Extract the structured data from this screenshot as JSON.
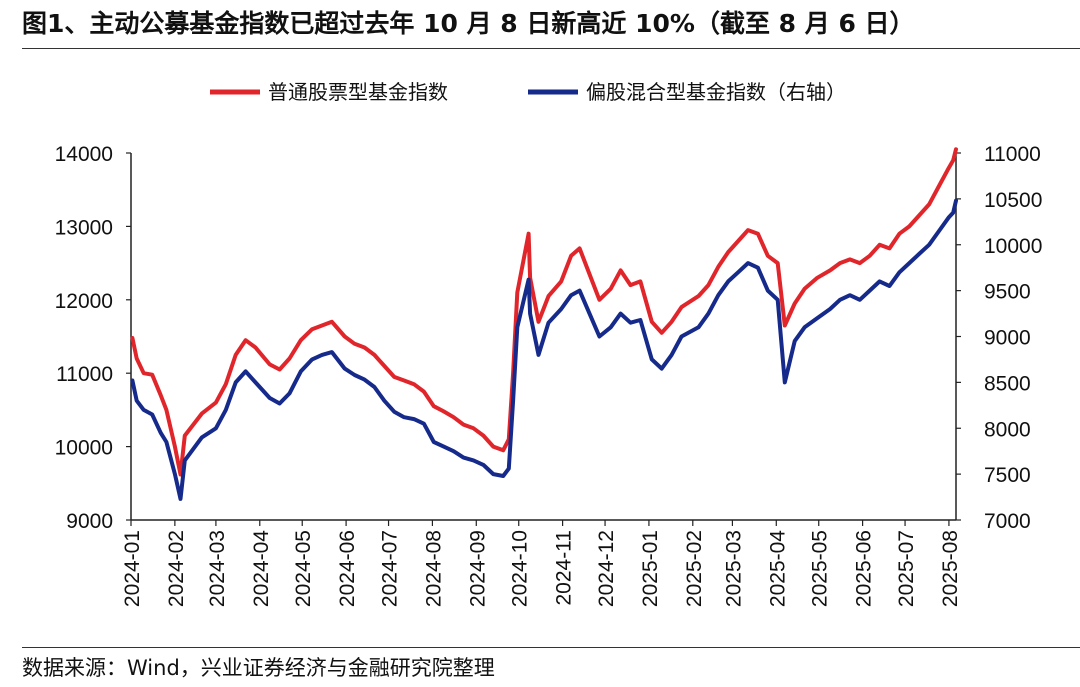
{
  "header": {
    "title": "图1、主动公募基金指数已超过去年 10 月 8 日新高近 10%（截至 8 月 6 日）"
  },
  "footer": {
    "source": "数据来源：Wind，兴业证券经济与金融研究院整理"
  },
  "colors": {
    "series1": "#e0262b",
    "series2": "#152a8a"
  },
  "chart_data": {
    "type": "line",
    "legend_position": "top",
    "grid": false,
    "x_labels": [
      "2024-01",
      "2024-02",
      "2024-03",
      "2024-04",
      "2024-05",
      "2024-06",
      "2024-07",
      "2024-08",
      "2024-09",
      "2024-10",
      "2024-11",
      "2024-12",
      "2025-01",
      "2025-02",
      "2025-03",
      "2025-04",
      "2025-05",
      "2025-06",
      "2025-07",
      "2025-08"
    ],
    "y_left": {
      "min": 9000,
      "max": 14000,
      "ticks": [
        9000,
        10000,
        11000,
        12000,
        13000,
        14000
      ]
    },
    "y_right": {
      "min": 7000,
      "max": 11000,
      "ticks": [
        7000,
        7500,
        8000,
        8500,
        9000,
        9500,
        10000,
        10500,
        11000
      ]
    },
    "series": [
      {
        "name": "普通股票型基金指数",
        "axis": "left",
        "points": [
          [
            "2024-01-02",
            11480
          ],
          [
            "2024-01-05",
            11200
          ],
          [
            "2024-01-10",
            11000
          ],
          [
            "2024-01-16",
            10980
          ],
          [
            "2024-01-22",
            10700
          ],
          [
            "2024-01-26",
            10500
          ],
          [
            "2024-02-01",
            10000
          ],
          [
            "2024-02-05",
            9620
          ],
          [
            "2024-02-08",
            10150
          ],
          [
            "2024-02-20",
            10450
          ],
          [
            "2024-03-01",
            10600
          ],
          [
            "2024-03-08",
            10850
          ],
          [
            "2024-03-15",
            11250
          ],
          [
            "2024-03-22",
            11450
          ],
          [
            "2024-03-29",
            11350
          ],
          [
            "2024-04-08",
            11120
          ],
          [
            "2024-04-15",
            11050
          ],
          [
            "2024-04-22",
            11200
          ],
          [
            "2024-04-30",
            11450
          ],
          [
            "2024-05-08",
            11600
          ],
          [
            "2024-05-15",
            11650
          ],
          [
            "2024-05-22",
            11700
          ],
          [
            "2024-05-31",
            11500
          ],
          [
            "2024-06-07",
            11400
          ],
          [
            "2024-06-14",
            11350
          ],
          [
            "2024-06-21",
            11250
          ],
          [
            "2024-06-28",
            11100
          ],
          [
            "2024-07-05",
            10950
          ],
          [
            "2024-07-12",
            10900
          ],
          [
            "2024-07-19",
            10850
          ],
          [
            "2024-07-26",
            10750
          ],
          [
            "2024-08-02",
            10550
          ],
          [
            "2024-08-09",
            10480
          ],
          [
            "2024-08-16",
            10400
          ],
          [
            "2024-08-23",
            10300
          ],
          [
            "2024-08-30",
            10250
          ],
          [
            "2024-09-06",
            10150
          ],
          [
            "2024-09-13",
            10000
          ],
          [
            "2024-09-20",
            9950
          ],
          [
            "2024-09-24",
            10100
          ],
          [
            "2024-09-27",
            11000
          ],
          [
            "2024-09-30",
            12100
          ],
          [
            "2024-10-08",
            12900
          ],
          [
            "2024-10-09",
            12300
          ],
          [
            "2024-10-15",
            11700
          ],
          [
            "2024-10-22",
            12050
          ],
          [
            "2024-10-31",
            12250
          ],
          [
            "2024-11-07",
            12600
          ],
          [
            "2024-11-13",
            12700
          ],
          [
            "2024-11-20",
            12350
          ],
          [
            "2024-11-27",
            12000
          ],
          [
            "2024-12-05",
            12150
          ],
          [
            "2024-12-12",
            12400
          ],
          [
            "2024-12-19",
            12200
          ],
          [
            "2024-12-26",
            12250
          ],
          [
            "2025-01-03",
            11700
          ],
          [
            "2025-01-10",
            11550
          ],
          [
            "2025-01-17",
            11700
          ],
          [
            "2025-01-24",
            11900
          ],
          [
            "2025-02-05",
            12050
          ],
          [
            "2025-02-12",
            12200
          ],
          [
            "2025-02-19",
            12450
          ],
          [
            "2025-02-26",
            12650
          ],
          [
            "2025-03-05",
            12800
          ],
          [
            "2025-03-12",
            12950
          ],
          [
            "2025-03-19",
            12900
          ],
          [
            "2025-03-26",
            12600
          ],
          [
            "2025-04-02",
            12500
          ],
          [
            "2025-04-07",
            11650
          ],
          [
            "2025-04-14",
            11950
          ],
          [
            "2025-04-21",
            12150
          ],
          [
            "2025-04-30",
            12300
          ],
          [
            "2025-05-09",
            12400
          ],
          [
            "2025-05-16",
            12500
          ],
          [
            "2025-05-23",
            12550
          ],
          [
            "2025-05-30",
            12500
          ],
          [
            "2025-06-06",
            12600
          ],
          [
            "2025-06-13",
            12750
          ],
          [
            "2025-06-20",
            12700
          ],
          [
            "2025-06-27",
            12900
          ],
          [
            "2025-07-04",
            13000
          ],
          [
            "2025-07-11",
            13150
          ],
          [
            "2025-07-18",
            13300
          ],
          [
            "2025-07-25",
            13550
          ],
          [
            "2025-08-01",
            13800
          ],
          [
            "2025-08-04",
            13900
          ],
          [
            "2025-08-06",
            14050
          ]
        ]
      },
      {
        "name": "偏股混合型基金指数（右轴）",
        "axis": "right",
        "points": [
          [
            "2024-01-02",
            8520
          ],
          [
            "2024-01-05",
            8300
          ],
          [
            "2024-01-10",
            8200
          ],
          [
            "2024-01-16",
            8150
          ],
          [
            "2024-01-22",
            7950
          ],
          [
            "2024-01-26",
            7850
          ],
          [
            "2024-02-01",
            7500
          ],
          [
            "2024-02-05",
            7230
          ],
          [
            "2024-02-08",
            7650
          ],
          [
            "2024-02-20",
            7900
          ],
          [
            "2024-03-01",
            8000
          ],
          [
            "2024-03-08",
            8200
          ],
          [
            "2024-03-15",
            8500
          ],
          [
            "2024-03-22",
            8620
          ],
          [
            "2024-03-29",
            8500
          ],
          [
            "2024-04-08",
            8330
          ],
          [
            "2024-04-15",
            8270
          ],
          [
            "2024-04-22",
            8380
          ],
          [
            "2024-04-30",
            8620
          ],
          [
            "2024-05-08",
            8750
          ],
          [
            "2024-05-15",
            8800
          ],
          [
            "2024-05-22",
            8830
          ],
          [
            "2024-05-31",
            8650
          ],
          [
            "2024-06-07",
            8580
          ],
          [
            "2024-06-14",
            8530
          ],
          [
            "2024-06-21",
            8450
          ],
          [
            "2024-06-28",
            8300
          ],
          [
            "2024-07-05",
            8180
          ],
          [
            "2024-07-12",
            8120
          ],
          [
            "2024-07-19",
            8100
          ],
          [
            "2024-07-26",
            8050
          ],
          [
            "2024-08-02",
            7850
          ],
          [
            "2024-08-09",
            7800
          ],
          [
            "2024-08-16",
            7750
          ],
          [
            "2024-08-23",
            7680
          ],
          [
            "2024-08-30",
            7650
          ],
          [
            "2024-09-06",
            7600
          ],
          [
            "2024-09-13",
            7500
          ],
          [
            "2024-09-20",
            7480
          ],
          [
            "2024-09-24",
            7560
          ],
          [
            "2024-09-27",
            8300
          ],
          [
            "2024-09-30",
            9100
          ],
          [
            "2024-10-08",
            9620
          ],
          [
            "2024-10-09",
            9250
          ],
          [
            "2024-10-15",
            8800
          ],
          [
            "2024-10-22",
            9150
          ],
          [
            "2024-10-31",
            9300
          ],
          [
            "2024-11-07",
            9450
          ],
          [
            "2024-11-13",
            9500
          ],
          [
            "2024-11-20",
            9250
          ],
          [
            "2024-11-27",
            9000
          ],
          [
            "2024-12-05",
            9100
          ],
          [
            "2024-12-12",
            9250
          ],
          [
            "2024-12-19",
            9150
          ],
          [
            "2024-12-26",
            9180
          ],
          [
            "2025-01-03",
            8750
          ],
          [
            "2025-01-10",
            8650
          ],
          [
            "2025-01-17",
            8800
          ],
          [
            "2025-01-24",
            9000
          ],
          [
            "2025-02-05",
            9100
          ],
          [
            "2025-02-12",
            9250
          ],
          [
            "2025-02-19",
            9450
          ],
          [
            "2025-02-26",
            9600
          ],
          [
            "2025-03-05",
            9700
          ],
          [
            "2025-03-12",
            9800
          ],
          [
            "2025-03-19",
            9750
          ],
          [
            "2025-03-26",
            9500
          ],
          [
            "2025-04-02",
            9400
          ],
          [
            "2025-04-07",
            8500
          ],
          [
            "2025-04-14",
            8950
          ],
          [
            "2025-04-21",
            9100
          ],
          [
            "2025-04-30",
            9200
          ],
          [
            "2025-05-09",
            9300
          ],
          [
            "2025-05-16",
            9400
          ],
          [
            "2025-05-23",
            9450
          ],
          [
            "2025-05-30",
            9400
          ],
          [
            "2025-06-06",
            9500
          ],
          [
            "2025-06-13",
            9600
          ],
          [
            "2025-06-20",
            9550
          ],
          [
            "2025-06-27",
            9700
          ],
          [
            "2025-07-04",
            9800
          ],
          [
            "2025-07-11",
            9900
          ],
          [
            "2025-07-18",
            10000
          ],
          [
            "2025-07-25",
            10150
          ],
          [
            "2025-08-01",
            10300
          ],
          [
            "2025-08-04",
            10350
          ],
          [
            "2025-08-06",
            10480
          ]
        ]
      }
    ]
  }
}
